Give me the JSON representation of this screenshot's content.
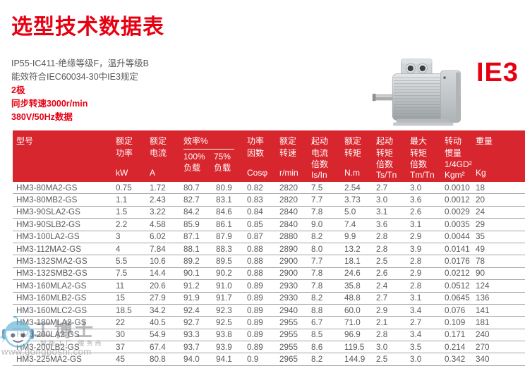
{
  "page": {
    "title": "选型技术数据表",
    "badge": "IE3"
  },
  "specs": [
    "IP55-IC411-绝缘等级F，温升等级B",
    "能效符合IEC60034-30中IE3规定",
    "2极",
    "同步转速3000r/min",
    "380V/50Hz数据"
  ],
  "colors": {
    "accent_red": "#e60012",
    "table_header_red": "#d8262e",
    "body_text_gray": "#58595b"
  },
  "icons": {
    "motor_image": "three-phase-motor-photo",
    "watermark_logo": "robot-head-icon"
  },
  "table": {
    "header": {
      "cols": [
        {
          "lines": [
            "型号"
          ],
          "unit": ""
        },
        {
          "lines": [
            "额定",
            "功率"
          ],
          "unit": "kW"
        },
        {
          "lines": [
            "额定",
            "电流"
          ],
          "unit": "A"
        },
        {
          "group_label": "效率%",
          "sub": [
            {
              "lines": [
                "100%",
                "负载"
              ]
            },
            {
              "lines": [
                "75%",
                "负载"
              ]
            }
          ]
        },
        {
          "lines": [
            "功率",
            "因数"
          ],
          "unit": "Cosφ"
        },
        {
          "lines": [
            "额定",
            "转速"
          ],
          "unit": "r/min"
        },
        {
          "lines": [
            "起动",
            "电流",
            "倍数"
          ],
          "unit": "Is/In"
        },
        {
          "lines": [
            "额定",
            "转矩"
          ],
          "unit": "N.m"
        },
        {
          "lines": [
            "起动",
            "转矩",
            "倍数"
          ],
          "unit": "Ts/Tn"
        },
        {
          "lines": [
            "最大",
            "转矩",
            "倍数"
          ],
          "unit": "Tm/Tn"
        },
        {
          "lines": [
            "转动",
            "惯量",
            "1/4GD²"
          ],
          "unit": "Kgm²"
        },
        {
          "lines": [
            "重量"
          ],
          "unit": "Kg"
        }
      ]
    },
    "rows": [
      [
        "HM3-80MA2-GS",
        "0.75",
        "1.72",
        "80.7",
        "80.9",
        "0.82",
        "2820",
        "7.5",
        "2.54",
        "2.7",
        "3.0",
        "0.0010",
        "18"
      ],
      [
        "HM3-80MB2-GS",
        "1.1",
        "2.43",
        "82.7",
        "83.1",
        "0.83",
        "2820",
        "7.7",
        "3.73",
        "3.0",
        "3.6",
        "0.0012",
        "20"
      ],
      [
        "HM3-90SLA2-GS",
        "1.5",
        "3.22",
        "84.2",
        "84.6",
        "0.84",
        "2840",
        "7.8",
        "5.0",
        "3.1",
        "2.6",
        "0.0029",
        "24"
      ],
      [
        "HM3-90SLB2-GS",
        "2.2",
        "4.58",
        "85.9",
        "86.1",
        "0.85",
        "2840",
        "9.0",
        "7.4",
        "3.6",
        "3.1",
        "0.0035",
        "29"
      ],
      [
        "HM3-100LA2-GS",
        "3",
        "6.02",
        "87.1",
        "87.9",
        "0.87",
        "2880",
        "8.2",
        "9.9",
        "2.8",
        "2.9",
        "0.0044",
        "35"
      ],
      [
        "HM3-112MA2-GS",
        "4",
        "7.84",
        "88.1",
        "88.3",
        "0.88",
        "2890",
        "8.0",
        "13.2",
        "2.8",
        "3.9",
        "0.0141",
        "49"
      ],
      [
        "HM3-132SMA2-GS",
        "5.5",
        "10.6",
        "89.2",
        "89.5",
        "0.88",
        "2900",
        "7.7",
        "18.1",
        "2.5",
        "2.8",
        "0.0176",
        "78"
      ],
      [
        "HM3-132SMB2-GS",
        "7.5",
        "14.4",
        "90.1",
        "90.2",
        "0.88",
        "2900",
        "7.8",
        "24.6",
        "2.6",
        "2.9",
        "0.0212",
        "90"
      ],
      [
        "HM3-160MLA2-GS",
        "11",
        "20.6",
        "91.2",
        "91.0",
        "0.89",
        "2930",
        "7.8",
        "35.8",
        "2.4",
        "2.8",
        "0.0512",
        "124"
      ],
      [
        "HM3-160MLB2-GS",
        "15",
        "27.9",
        "91.9",
        "91.7",
        "0.89",
        "2930",
        "8.2",
        "48.8",
        "2.7",
        "3.1",
        "0.0645",
        "136"
      ],
      [
        "HM3-160MLC2-GS",
        "18.5",
        "34.2",
        "92.4",
        "92.3",
        "0.89",
        "2940",
        "8.8",
        "60.0",
        "2.9",
        "3.4",
        "0.076",
        "141"
      ],
      [
        "HM3-180MLA2-GS",
        "22",
        "40.5",
        "92.7",
        "92.5",
        "0.89",
        "2955",
        "6.7",
        "71.0",
        "2.1",
        "2.7",
        "0.109",
        "181"
      ],
      [
        "HM3-200LA2-GS",
        "30",
        "54.9",
        "93.3",
        "93.8",
        "0.89",
        "2955",
        "8.5",
        "96.9",
        "2.8",
        "3.4",
        "0.171",
        "240"
      ],
      [
        "HM3-200LB2-GS",
        "37",
        "67.4",
        "93.7",
        "93.9",
        "0.89",
        "2955",
        "8.6",
        "119.5",
        "3.0",
        "3.5",
        "0.214",
        "270"
      ],
      [
        "HM3-225MA2-GS",
        "45",
        "80.8",
        "94.0",
        "94.1",
        "0.9",
        "2965",
        "8.2",
        "144.9",
        "2.5",
        "3.0",
        "0.342",
        "340"
      ]
    ]
  },
  "watermark": {
    "brand": "工博士",
    "tagline": "智能工厂 服务商",
    "url": "www.gongboshi.com"
  }
}
